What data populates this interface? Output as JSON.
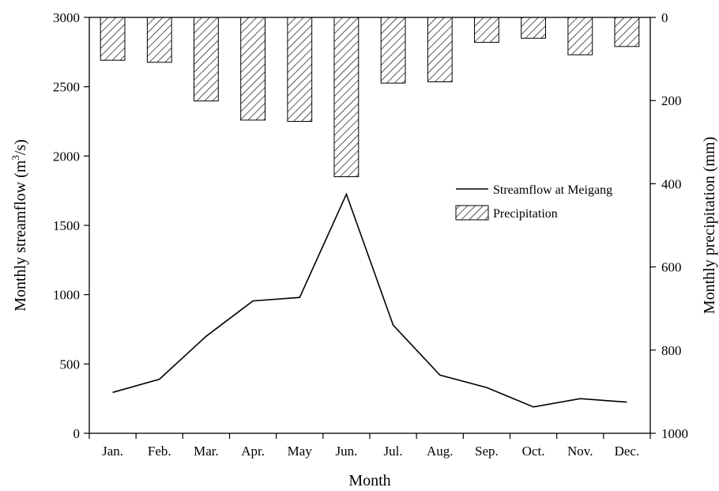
{
  "chart_data": {
    "type": "bar+line",
    "categories": [
      "Jan.",
      "Feb.",
      "Mar.",
      "Apr.",
      "May",
      "Jun.",
      "Jul.",
      "Aug.",
      "Sep.",
      "Oct.",
      "Nov.",
      "Dec."
    ],
    "series": [
      {
        "name": "Streamflow at Meigang",
        "kind": "line",
        "axis": "left",
        "values": [
          295,
          390,
          700,
          955,
          980,
          1725,
          780,
          420,
          330,
          190,
          250,
          225
        ]
      },
      {
        "name": "Precipitation",
        "kind": "bar",
        "axis": "right",
        "pattern": "diagonal-hatch",
        "values": [
          103,
          108,
          201,
          247,
          250,
          383,
          158,
          155,
          60,
          50,
          90,
          70
        ]
      }
    ],
    "xlabel": "Month",
    "ylabel_left_prefix": "Monthly streamflow (m",
    "ylabel_left_sup": "3",
    "ylabel_left_suffix": "/s)",
    "ylabel_right": "Monthly precipitation (mm)",
    "ylim_left": [
      0,
      3000
    ],
    "ylim_right_inverted": [
      0,
      1000
    ],
    "yticks_left": [
      "0",
      "500",
      "1000",
      "1500",
      "2000",
      "2500",
      "3000"
    ],
    "yticks_right": [
      "0",
      "200",
      "400",
      "600",
      "800",
      "1000"
    ],
    "legend_position": "center-right",
    "grid": false,
    "colors": {
      "line": "#000000",
      "bar_fill": "#ffffff",
      "hatch": "#000000"
    }
  }
}
